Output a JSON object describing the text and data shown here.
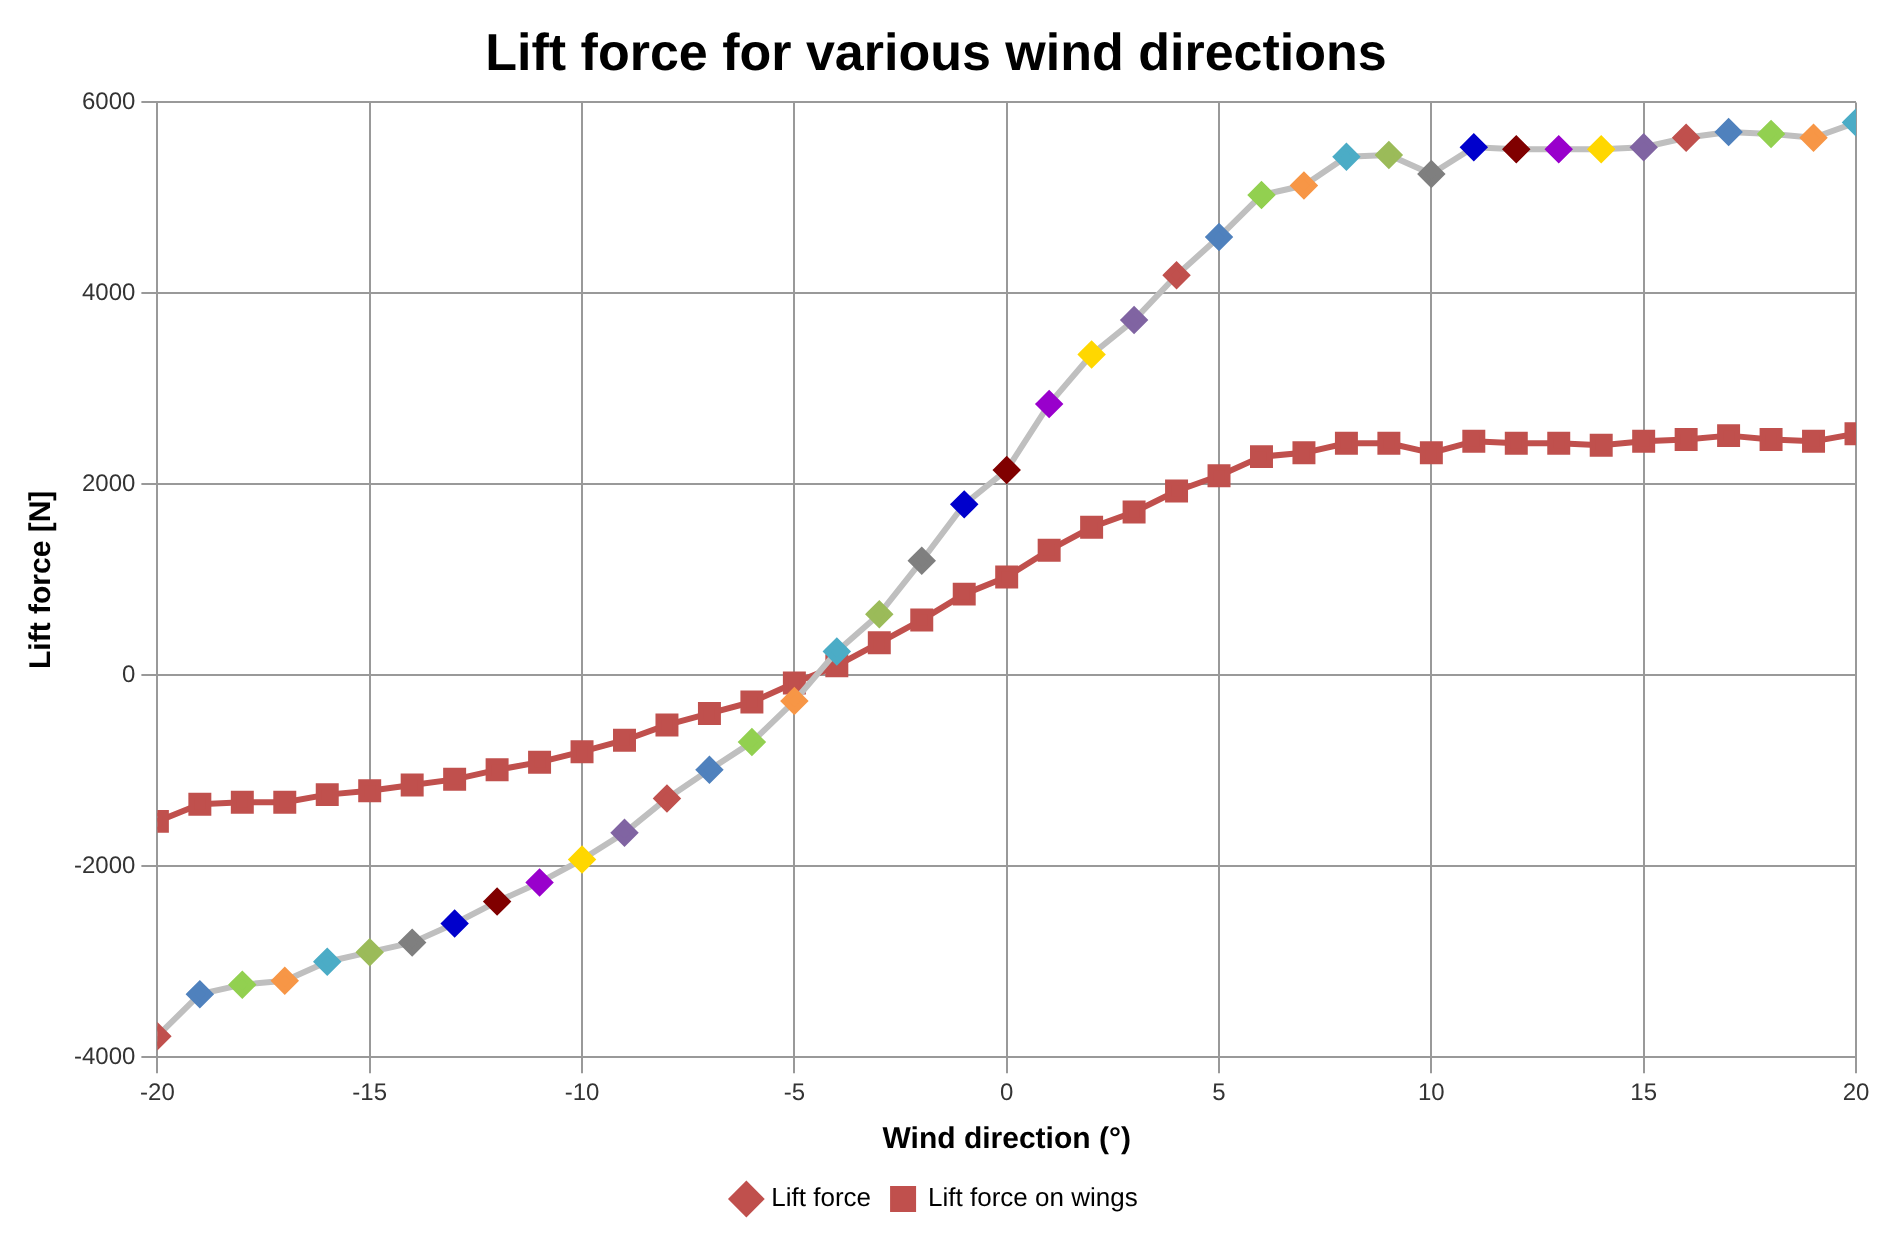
{
  "chart_data": {
    "type": "line",
    "title": "Lift force for various wind directions",
    "xlabel": "Wind direction (°)",
    "ylabel": "Lift force [N]",
    "x": [
      -20,
      -19,
      -18,
      -17,
      -16,
      -15,
      -14,
      -13,
      -12,
      -11,
      -10,
      -9,
      -8,
      -7,
      -6,
      -5,
      -4,
      -3,
      -2,
      -1,
      0,
      1,
      2,
      3,
      4,
      5,
      6,
      7,
      8,
      9,
      10,
      11,
      12,
      13,
      14,
      15,
      16,
      17,
      18,
      19,
      20
    ],
    "series": [
      {
        "name": "Lift force",
        "color": "#bfbfbf",
        "marker": "diamond",
        "values": [
          -3780,
          -3340,
          -3240,
          -3200,
          -3000,
          -2900,
          -2800,
          -2600,
          -2370,
          -2170,
          -1930,
          -1650,
          -1290,
          -990,
          -700,
          -270,
          250,
          640,
          1200,
          1790,
          2150,
          2840,
          3360,
          3720,
          4190,
          4590,
          5030,
          5130,
          5430,
          5450,
          5250,
          5530,
          5510,
          5510,
          5510,
          5530,
          5630,
          5690,
          5670,
          5630,
          5790
        ],
        "colors": [
          "#c0504d",
          "#4f81bd",
          "#92d050",
          "#f79646",
          "#4bacc6",
          "#9bbb59",
          "#7f7f7f",
          "#0000cc",
          "#800000",
          "#9900cc",
          "#ffd700",
          "#8064a2",
          "#c0504d",
          "#4f81bd",
          "#92d050",
          "#f79646",
          "#4bacc6",
          "#9bbb59",
          "#7f7f7f",
          "#0000cc",
          "#800000",
          "#9900cc",
          "#ffd700",
          "#8064a2",
          "#c0504d",
          "#4f81bd",
          "#92d050",
          "#f79646",
          "#4bacc6",
          "#9bbb59",
          "#7f7f7f",
          "#0000cc",
          "#800000",
          "#9900cc",
          "#ffd700",
          "#8064a2",
          "#c0504d",
          "#4f81bd",
          "#92d050",
          "#f79646",
          "#4bacc6"
        ]
      },
      {
        "name": "Lift force on wings",
        "color": "#c0504d",
        "marker": "square",
        "values": [
          -1530,
          -1350,
          -1330,
          -1330,
          -1250,
          -1210,
          -1150,
          -1090,
          -990,
          -910,
          -800,
          -680,
          -520,
          -400,
          -280,
          -80,
          100,
          340,
          580,
          850,
          1030,
          1310,
          1550,
          1710,
          1930,
          2090,
          2290,
          2330,
          2430,
          2430,
          2330,
          2450,
          2430,
          2430,
          2410,
          2450,
          2470,
          2510,
          2470,
          2450,
          2530
        ]
      }
    ],
    "xlim": [
      -20,
      20
    ],
    "xticks": [
      -20,
      -15,
      -10,
      -5,
      0,
      5,
      10,
      15,
      20
    ],
    "ylim": [
      -4000,
      6000
    ],
    "yticks": [
      -4000,
      -2000,
      0,
      2000,
      4000,
      6000
    ],
    "grid": true,
    "legend": "bottom"
  }
}
